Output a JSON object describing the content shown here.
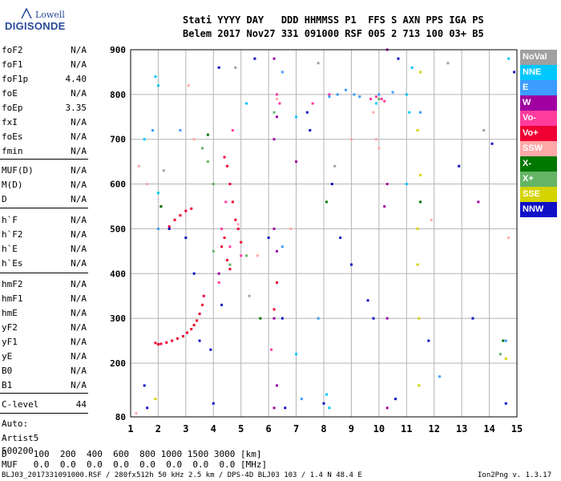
{
  "logo": {
    "line1": "Lowell",
    "line2": "DIGISONDE"
  },
  "header": {
    "labels": "Stati YYYY DAY   DDD HHMMSS P1  FFS S AXN PPS IGA PS",
    "values": "Belem 2017 Nov27 331 091000 RSF 005 2 713 100 03+ B5"
  },
  "params_group1": [
    {
      "name": "foF2",
      "value": "N/A"
    },
    {
      "name": "foF1",
      "value": "N/A"
    },
    {
      "name": "foF1p",
      "value": "4.40"
    },
    {
      "name": "foE",
      "value": "N/A"
    },
    {
      "name": "foEp",
      "value": "3.35"
    },
    {
      "name": "fxI",
      "value": "N/A"
    },
    {
      "name": "foEs",
      "value": "N/A"
    },
    {
      "name": "fmin",
      "value": "N/A"
    }
  ],
  "params_group2": [
    {
      "name": "MUF(D)",
      "value": "N/A"
    },
    {
      "name": "M(D)",
      "value": "N/A"
    },
    {
      "name": "D",
      "value": "N/A"
    }
  ],
  "params_group3": [
    {
      "name": "h`F",
      "value": "N/A"
    },
    {
      "name": "h`F2",
      "value": "N/A"
    },
    {
      "name": "h`E",
      "value": "N/A"
    },
    {
      "name": "h`Es",
      "value": "N/A"
    }
  ],
  "params_group4": [
    {
      "name": "hmF2",
      "value": "N/A"
    },
    {
      "name": "hmF1",
      "value": "N/A"
    },
    {
      "name": "hmE",
      "value": "N/A"
    },
    {
      "name": "yF2",
      "value": "N/A"
    },
    {
      "name": "yF1",
      "value": "N/A"
    },
    {
      "name": "yE",
      "value": "N/A"
    },
    {
      "name": "B0",
      "value": "N/A"
    },
    {
      "name": "B1",
      "value": "N/A"
    }
  ],
  "clevel": {
    "name": "C-level",
    "value": "44"
  },
  "auto": {
    "line1": "Auto:",
    "line2": "Artist5",
    "line3": "500200"
  },
  "legend": [
    {
      "label": "NoVal",
      "color": "#a0a0a0"
    },
    {
      "label": "NNE",
      "color": "#00c8ff"
    },
    {
      "label": "E",
      "color": "#3c9cff"
    },
    {
      "label": "W",
      "color": "#a000a0"
    },
    {
      "label": "Vo-",
      "color": "#ff3c9c"
    },
    {
      "label": "Vo+",
      "color": "#ee0033"
    },
    {
      "label": "SSW",
      "color": "#ffa8a8"
    },
    {
      "label": "X-",
      "color": "#007800"
    },
    {
      "label": "X+",
      "color": "#64b464"
    },
    {
      "label": "SSE",
      "color": "#d4d400"
    },
    {
      "label": "NNW",
      "color": "#1010c8"
    }
  ],
  "dm_table": {
    "row1": "D     100  200  400  600  800 1000 1500 3000 [km]",
    "row2": "MUF   0.0  0.0  0.0  0.0  0.0  0.0  0.0  0.0 [MHz]"
  },
  "footer": {
    "left": "BLJ03_2017331091000.RSF / 280fx512h 50 kHz 2.5 km / DPS-4D BLJ03 103 / 1.4 N 48.4 E",
    "right": "Ion2Png v. 1.3.17"
  },
  "chart_data": {
    "type": "scatter",
    "title": "",
    "xlabel": "",
    "ylabel": "",
    "xlim": [
      1,
      15
    ],
    "ylim": [
      80,
      900
    ],
    "x_ticks": [
      1,
      2,
      3,
      4,
      5,
      6,
      7,
      8,
      9,
      10,
      11,
      12,
      13,
      14,
      15
    ],
    "y_ticks": [
      80,
      200,
      300,
      400,
      500,
      600,
      700,
      800,
      900
    ],
    "grid": true,
    "legend_placement": "right",
    "series": [
      {
        "name": "Vo+",
        "color": "#ee0033",
        "points": [
          [
            1.9,
            245
          ],
          [
            2.0,
            242
          ],
          [
            2.1,
            243
          ],
          [
            2.3,
            246
          ],
          [
            2.5,
            250
          ],
          [
            2.7,
            255
          ],
          [
            2.9,
            260
          ],
          [
            3.05,
            268
          ],
          [
            3.2,
            276
          ],
          [
            3.3,
            285
          ],
          [
            3.4,
            295
          ],
          [
            3.5,
            310
          ],
          [
            3.6,
            330
          ],
          [
            3.65,
            350
          ],
          [
            2.4,
            505
          ],
          [
            2.6,
            520
          ],
          [
            2.8,
            530
          ],
          [
            3.0,
            540
          ],
          [
            3.2,
            545
          ],
          [
            4.3,
            460
          ],
          [
            4.4,
            480
          ],
          [
            4.5,
            430
          ],
          [
            4.6,
            410
          ],
          [
            4.4,
            660
          ],
          [
            4.5,
            640
          ],
          [
            4.6,
            600
          ],
          [
            4.7,
            560
          ],
          [
            4.8,
            520
          ],
          [
            4.9,
            500
          ],
          [
            5.0,
            470
          ],
          [
            6.2,
            320
          ],
          [
            6.3,
            380
          ]
        ]
      },
      {
        "name": "Vo-",
        "color": "#ff3c9c",
        "points": [
          [
            4.2,
            380
          ],
          [
            4.3,
            500
          ],
          [
            4.45,
            560
          ],
          [
            4.6,
            460
          ],
          [
            4.7,
            720
          ],
          [
            5.0,
            440
          ],
          [
            6.1,
            230
          ],
          [
            6.3,
            800
          ],
          [
            6.4,
            780
          ],
          [
            7.6,
            780
          ],
          [
            8.2,
            800
          ],
          [
            9.7,
            790
          ],
          [
            9.9,
            795
          ],
          [
            10.1,
            790
          ],
          [
            10.2,
            785
          ]
        ]
      },
      {
        "name": "W",
        "color": "#a000a0",
        "points": [
          [
            6.2,
            100
          ],
          [
            6.2,
            300
          ],
          [
            6.2,
            500
          ],
          [
            6.2,
            700
          ],
          [
            6.2,
            880
          ],
          [
            6.3,
            150
          ],
          [
            6.3,
            450
          ],
          [
            6.3,
            750
          ],
          [
            10.3,
            100
          ],
          [
            10.3,
            300
          ],
          [
            10.3,
            600
          ],
          [
            10.3,
            900
          ],
          [
            10.2,
            550
          ],
          [
            4.2,
            400
          ],
          [
            13.6,
            560
          ],
          [
            7.0,
            650
          ],
          [
            2.1,
            550
          ]
        ]
      },
      {
        "name": "NNE",
        "color": "#00c8ff",
        "points": [
          [
            1.5,
            700
          ],
          [
            1.9,
            840
          ],
          [
            2.0,
            820
          ],
          [
            2.0,
            580
          ],
          [
            5.2,
            780
          ],
          [
            7.0,
            750
          ],
          [
            7.0,
            220
          ],
          [
            8.1,
            130
          ],
          [
            8.2,
            100
          ],
          [
            9.9,
            780
          ],
          [
            11.0,
            600
          ],
          [
            11.0,
            800
          ],
          [
            11.2,
            860
          ],
          [
            11.1,
            760
          ],
          [
            14.7,
            880
          ]
        ]
      },
      {
        "name": "E",
        "color": "#3c9cff",
        "points": [
          [
            1.8,
            720
          ],
          [
            2.0,
            500
          ],
          [
            2.8,
            720
          ],
          [
            6.5,
            460
          ],
          [
            6.5,
            850
          ],
          [
            7.2,
            120
          ],
          [
            7.8,
            300
          ],
          [
            8.2,
            795
          ],
          [
            8.5,
            800
          ],
          [
            8.8,
            810
          ],
          [
            9.1,
            800
          ],
          [
            9.3,
            795
          ],
          [
            10.0,
            800
          ],
          [
            10.5,
            805
          ],
          [
            11.5,
            760
          ],
          [
            12.2,
            170
          ],
          [
            14.6,
            250
          ]
        ]
      },
      {
        "name": "SSW",
        "color": "#ffa8a8",
        "points": [
          [
            1.2,
            88
          ],
          [
            1.3,
            640
          ],
          [
            1.6,
            600
          ],
          [
            3.1,
            820
          ],
          [
            3.3,
            700
          ],
          [
            4.9,
            510
          ],
          [
            5.6,
            440
          ],
          [
            6.3,
            790
          ],
          [
            6.8,
            500
          ],
          [
            9.0,
            700
          ],
          [
            9.8,
            760
          ],
          [
            9.9,
            700
          ],
          [
            10.0,
            680
          ],
          [
            11.9,
            520
          ],
          [
            14.7,
            480
          ]
        ]
      },
      {
        "name": "X-",
        "color": "#007800",
        "points": [
          [
            2.1,
            550
          ],
          [
            3.8,
            710
          ],
          [
            5.7,
            300
          ],
          [
            8.1,
            560
          ],
          [
            11.5,
            560
          ],
          [
            14.5,
            250
          ]
        ]
      },
      {
        "name": "X+",
        "color": "#64b464",
        "points": [
          [
            3.6,
            680
          ],
          [
            3.8,
            650
          ],
          [
            4.0,
            600
          ],
          [
            4.0,
            450
          ],
          [
            4.6,
            420
          ],
          [
            5.2,
            440
          ],
          [
            6.2,
            760
          ],
          [
            10.0,
            790
          ],
          [
            14.4,
            220
          ]
        ]
      },
      {
        "name": "SSE",
        "color": "#d4d400",
        "points": [
          [
            11.4,
            420
          ],
          [
            11.4,
            500
          ],
          [
            11.45,
            300
          ],
          [
            11.45,
            150
          ],
          [
            11.5,
            620
          ],
          [
            11.4,
            720
          ],
          [
            11.5,
            850
          ],
          [
            1.9,
            120
          ],
          [
            14.6,
            210
          ]
        ]
      },
      {
        "name": "NNW",
        "color": "#1010c8",
        "points": [
          [
            1.5,
            150
          ],
          [
            1.6,
            100
          ],
          [
            2.4,
            500
          ],
          [
            3.0,
            480
          ],
          [
            3.3,
            400
          ],
          [
            3.5,
            250
          ],
          [
            3.9,
            230
          ],
          [
            4.0,
            110
          ],
          [
            4.2,
            860
          ],
          [
            4.3,
            330
          ],
          [
            5.5,
            880
          ],
          [
            6.0,
            480
          ],
          [
            6.5,
            300
          ],
          [
            6.6,
            100
          ],
          [
            7.4,
            760
          ],
          [
            7.5,
            720
          ],
          [
            8.0,
            110
          ],
          [
            8.3,
            600
          ],
          [
            8.6,
            480
          ],
          [
            9.0,
            420
          ],
          [
            9.6,
            340
          ],
          [
            9.8,
            300
          ],
          [
            10.6,
            120
          ],
          [
            10.7,
            880
          ],
          [
            11.8,
            250
          ],
          [
            12.9,
            640
          ],
          [
            13.4,
            300
          ],
          [
            14.1,
            690
          ],
          [
            14.6,
            110
          ],
          [
            14.9,
            850
          ]
        ]
      },
      {
        "name": "NoVal",
        "color": "#a0a0a0",
        "points": [
          [
            2.2,
            630
          ],
          [
            4.8,
            860
          ],
          [
            7.8,
            870
          ],
          [
            8.4,
            640
          ],
          [
            12.5,
            870
          ],
          [
            13.8,
            720
          ],
          [
            5.3,
            350
          ]
        ]
      }
    ]
  }
}
